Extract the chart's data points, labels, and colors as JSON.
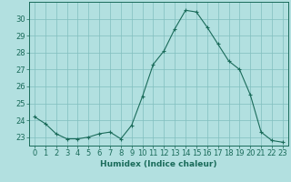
{
  "x": [
    0,
    1,
    2,
    3,
    4,
    5,
    6,
    7,
    8,
    9,
    10,
    11,
    12,
    13,
    14,
    15,
    16,
    17,
    18,
    19,
    20,
    21,
    22,
    23
  ],
  "y": [
    24.2,
    23.8,
    23.2,
    22.9,
    22.9,
    23.0,
    23.2,
    23.3,
    22.9,
    23.7,
    25.4,
    27.3,
    28.1,
    29.4,
    30.5,
    30.4,
    29.5,
    28.5,
    27.5,
    27.0,
    25.5,
    23.3,
    22.8,
    22.7
  ],
  "line_color": "#1a6b5a",
  "marker": "+",
  "background_color": "#b2e0e0",
  "grid_color": "#80bebe",
  "xlabel": "Humidex (Indice chaleur)",
  "ylim": [
    22.5,
    31.0
  ],
  "xlim": [
    -0.5,
    23.5
  ],
  "yticks": [
    23,
    24,
    25,
    26,
    27,
    28,
    29,
    30
  ],
  "xticks": [
    0,
    1,
    2,
    3,
    4,
    5,
    6,
    7,
    8,
    9,
    10,
    11,
    12,
    13,
    14,
    15,
    16,
    17,
    18,
    19,
    20,
    21,
    22,
    23
  ],
  "font_color": "#1a6b5a",
  "label_fontsize": 6.5,
  "tick_fontsize": 6
}
